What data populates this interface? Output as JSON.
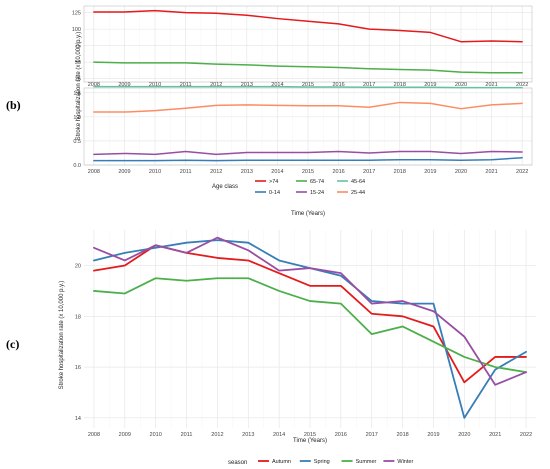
{
  "panel_labels": {
    "b": "(b)",
    "c": "(c)"
  },
  "chart_data": [
    {
      "type": "line",
      "id": "age-class-chart",
      "facets": 2,
      "x": [
        2008,
        2009,
        2010,
        2011,
        2012,
        2013,
        2014,
        2015,
        2016,
        2017,
        2018,
        2019,
        2020,
        2021,
        2022
      ],
      "xlabel": "Time (Years)",
      "ylabel": "Stroke hospitalization rate (x 10,000 p.y.)",
      "legend_title": "Age class",
      "legend_position": "bottom",
      "grid": true,
      "top_facet": {
        "ylim": [
          20,
          135
        ],
        "yticks": [
          "25",
          "50",
          "75",
          "100",
          "125"
        ],
        "series": [
          {
            "name": ">74",
            "color": "#e41a1c",
            "values": [
              126,
              126,
              128,
              125,
              124,
              121,
              116,
              112,
              108,
              100,
              98,
              95,
              81,
              82,
              81
            ]
          },
          {
            "name": "65-74",
            "color": "#4daf4a",
            "values": [
              50,
              49,
              49,
              49,
              47,
              46,
              44,
              43,
              42,
              40,
              39,
              38,
              35,
              34,
              34
            ]
          },
          {
            "name": "45-64",
            "color": "#66c2a5",
            "values": [
              13,
              13,
              13,
              13,
              13,
              13,
              13,
              12.5,
              12.5,
              12,
              12,
              12,
              11.5,
              11.5,
              11.5
            ]
          }
        ]
      },
      "bottom_facet": {
        "ylim": [
          0,
          1.6
        ],
        "yticks": [
          "0.0",
          "0.5",
          "1.0",
          "1.5"
        ],
        "series": [
          {
            "name": "0-14",
            "color": "#377eb8",
            "values": [
              0.09,
              0.09,
              0.09,
              0.1,
              0.09,
              0.1,
              0.1,
              0.1,
              0.1,
              0.1,
              0.11,
              0.11,
              0.1,
              0.11,
              0.15
            ]
          },
          {
            "name": "15-24",
            "color": "#984ea3",
            "values": [
              0.22,
              0.24,
              0.22,
              0.28,
              0.22,
              0.26,
              0.26,
              0.26,
              0.28,
              0.25,
              0.28,
              0.28,
              0.24,
              0.28,
              0.27
            ]
          },
          {
            "name": "25-44",
            "color": "#fc8d62",
            "values": [
              1.1,
              1.1,
              1.13,
              1.18,
              1.24,
              1.25,
              1.24,
              1.23,
              1.23,
              1.2,
              1.3,
              1.28,
              1.17,
              1.25,
              1.28
            ]
          }
        ]
      },
      "legend_order": [
        ">74",
        "65-74",
        "45-64",
        "0-14",
        "15-24",
        "25-44"
      ]
    },
    {
      "type": "line",
      "id": "season-chart",
      "x": [
        2008,
        2009,
        2010,
        2011,
        2012,
        2013,
        2014,
        2015,
        2016,
        2017,
        2018,
        2019,
        2020,
        2021,
        2022
      ],
      "xlabel": "Time (Years)",
      "ylabel": "Stroke hospitalization rate (x 10,000 p.y.)",
      "ylim": [
        13.6,
        21.4
      ],
      "yticks": [
        "14",
        "16",
        "18",
        "20"
      ],
      "legend_title": "season",
      "legend_position": "bottom",
      "grid": true,
      "series": [
        {
          "name": "Autumn",
          "color": "#e41a1c",
          "values": [
            19.8,
            20.0,
            20.8,
            20.5,
            20.3,
            20.2,
            19.7,
            19.2,
            19.2,
            18.1,
            18.0,
            17.6,
            15.4,
            16.4,
            16.4
          ]
        },
        {
          "name": "Spring",
          "color": "#377eb8",
          "values": [
            20.2,
            20.5,
            20.7,
            20.9,
            21.0,
            20.9,
            20.2,
            19.9,
            19.6,
            18.6,
            18.5,
            18.5,
            14.0,
            15.9,
            16.6
          ]
        },
        {
          "name": "Summer",
          "color": "#4daf4a",
          "values": [
            19.0,
            18.9,
            19.5,
            19.4,
            19.5,
            19.5,
            19.0,
            18.6,
            18.5,
            17.3,
            17.6,
            17.0,
            16.4,
            16.0,
            15.8
          ]
        },
        {
          "name": "Winter",
          "color": "#984ea3",
          "values": [
            20.7,
            20.2,
            20.8,
            20.5,
            21.1,
            20.6,
            19.8,
            19.9,
            19.7,
            18.5,
            18.6,
            18.2,
            17.2,
            15.3,
            15.8
          ]
        }
      ]
    }
  ]
}
